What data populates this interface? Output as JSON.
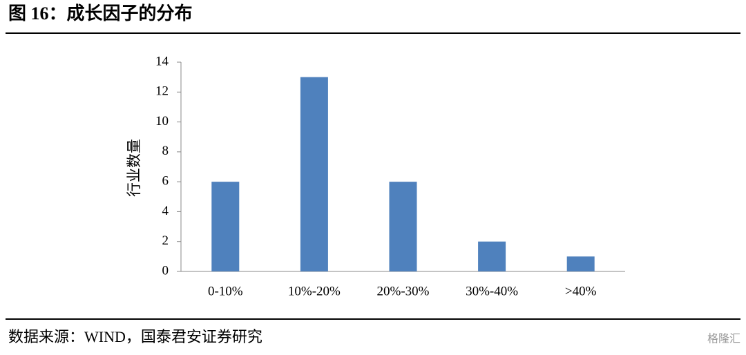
{
  "header": {
    "title": "图 16：成长因子的分布"
  },
  "chart_data": {
    "type": "bar",
    "y_label": "行业数量",
    "categories": [
      "0-10%",
      "10%-20%",
      "20%-30%",
      "30%-40%",
      ">40%"
    ],
    "values": [
      6,
      13,
      6,
      2,
      1
    ],
    "color": "#4f81bd",
    "ylim": [
      0,
      14
    ],
    "yticks": [
      0,
      2,
      4,
      6,
      8,
      10,
      12,
      14
    ],
    "grid": false
  },
  "footer": {
    "source": "数据来源：WIND，国泰君安证券研究",
    "watermark": "格隆汇"
  }
}
